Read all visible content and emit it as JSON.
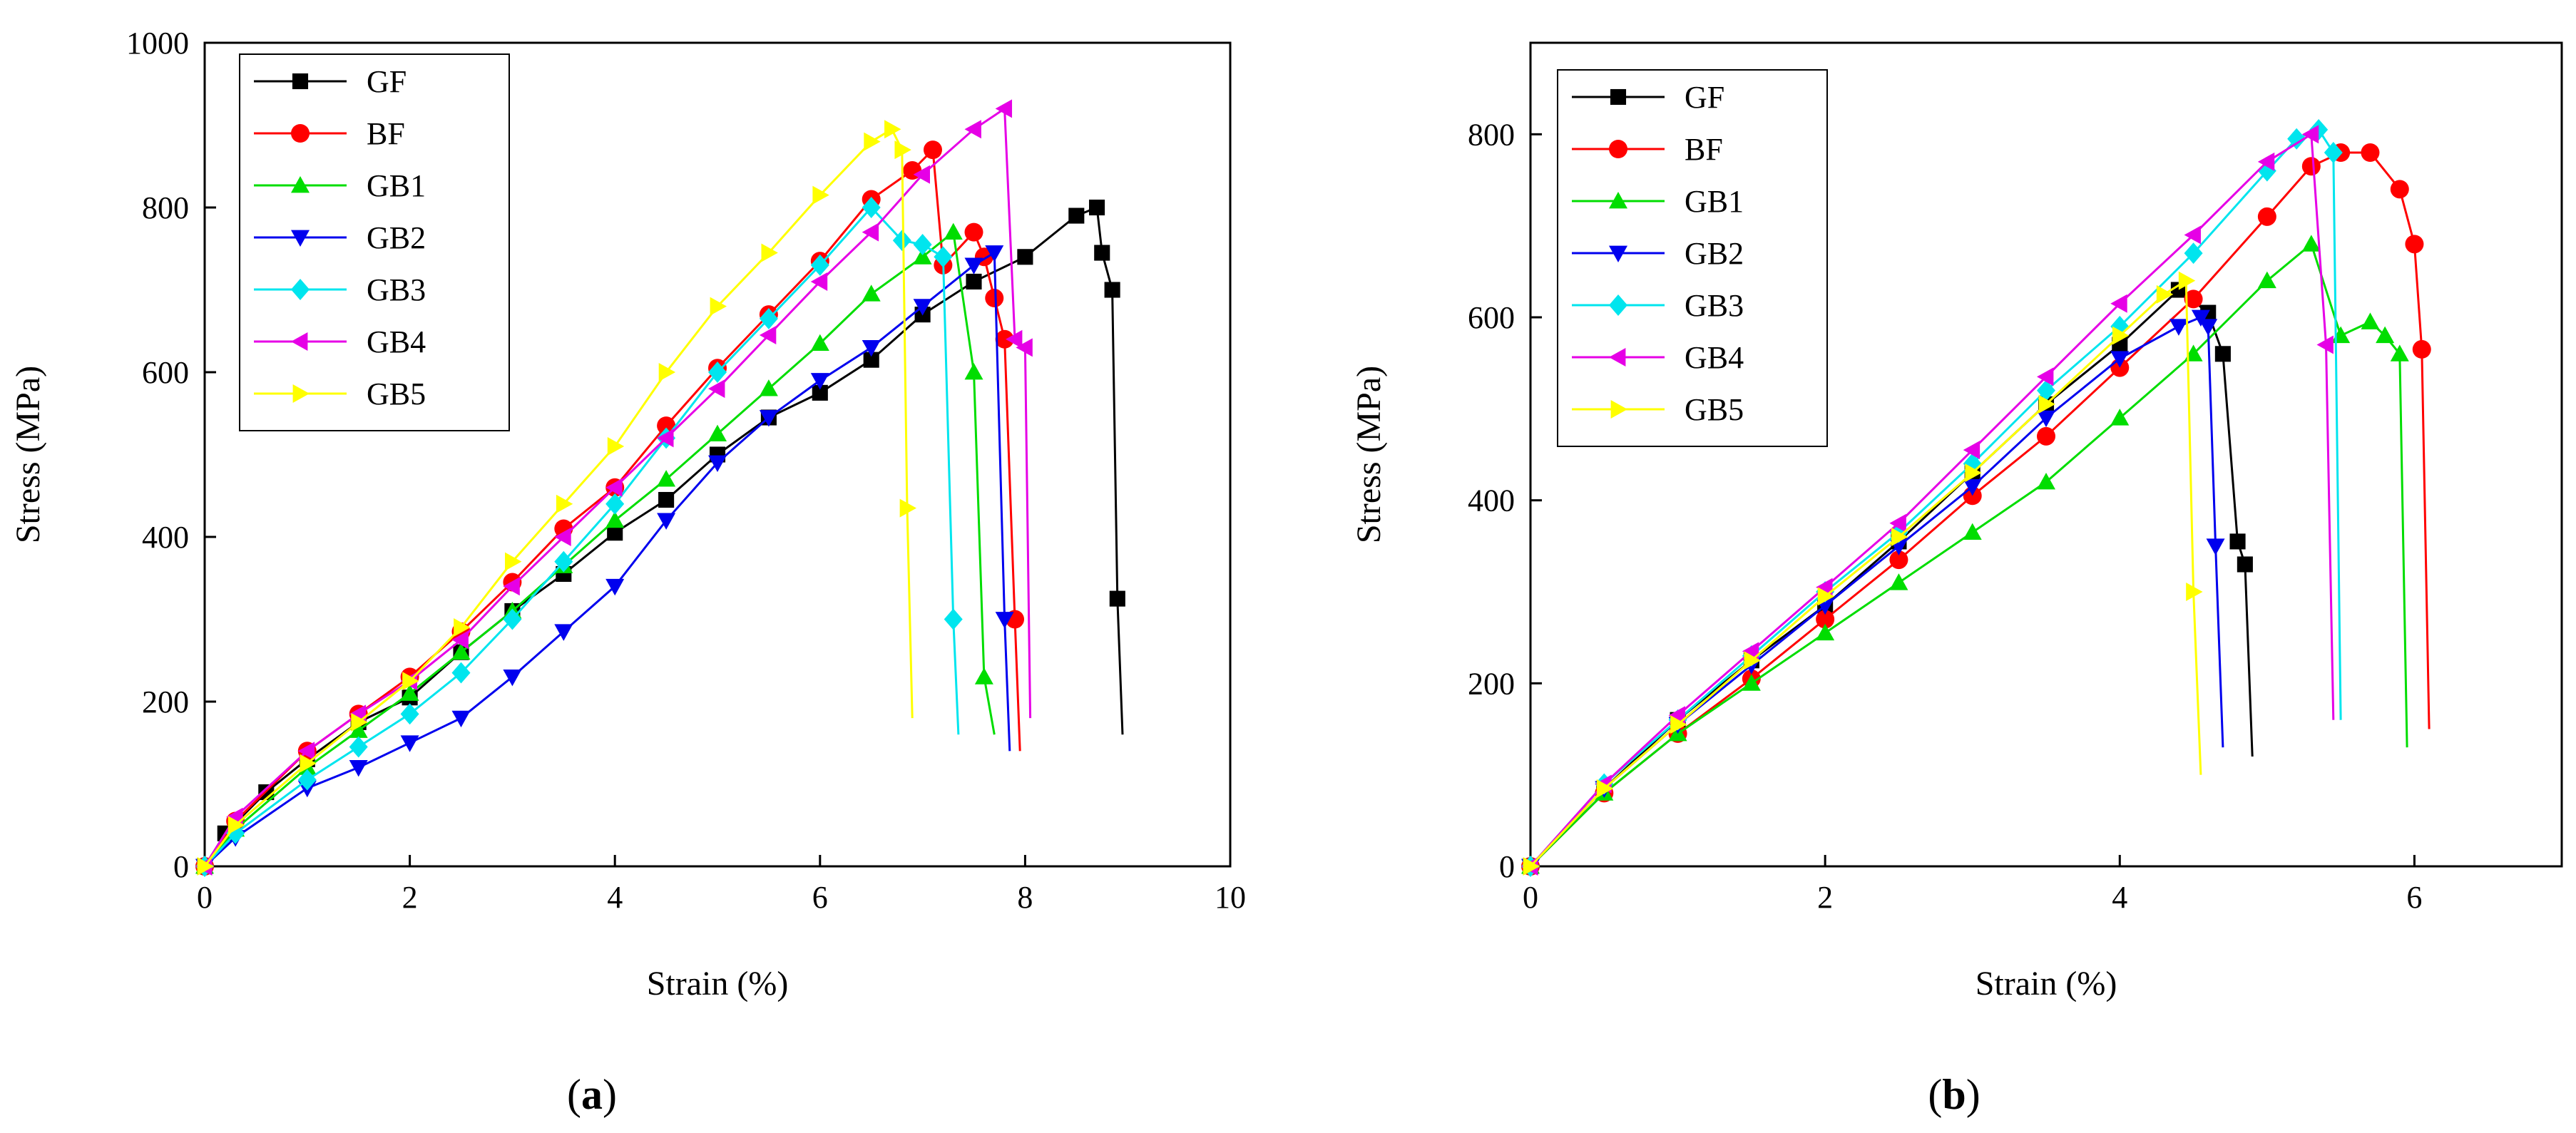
{
  "colors": {
    "GF": "#000000",
    "BF": "#ff0000",
    "GB1": "#00dd00",
    "GB2": "#0000ee",
    "GB3": "#00e5ee",
    "GB4": "#e600e6",
    "GB5": "#ffff00"
  },
  "chart_data": [
    {
      "type": "line",
      "panel_label": {
        "open": "(",
        "letter": "a",
        "close": ")"
      },
      "xlabel": "Strain (%)",
      "ylabel": "Stress (MPa)",
      "xlim": [
        0,
        10
      ],
      "ylim": [
        0,
        1000
      ],
      "xticks": [
        0,
        2,
        4,
        6,
        8,
        10
      ],
      "yticks": [
        0,
        200,
        400,
        600,
        800,
        1000
      ],
      "legend": {
        "placement": "top-left"
      },
      "series": [
        {
          "name": "GF",
          "marker": "square",
          "x": [
            0,
            0.2,
            0.6,
            1,
            1.5,
            2,
            2.5,
            3,
            3.5,
            4,
            4.5,
            5,
            5.5,
            6,
            6.5,
            7,
            7.5,
            8,
            8.5,
            8.7,
            8.75,
            8.85,
            8.9,
            8.95
          ],
          "y": [
            0,
            40,
            90,
            130,
            175,
            205,
            260,
            310,
            355,
            405,
            445,
            500,
            545,
            575,
            615,
            670,
            710,
            740,
            790,
            800,
            745,
            700,
            325,
            160
          ]
        },
        {
          "name": "BF",
          "marker": "circle",
          "x": [
            0,
            0.3,
            1,
            1.5,
            2,
            2.5,
            3,
            3.5,
            4,
            4.5,
            5,
            5.5,
            6,
            6.5,
            6.9,
            7.1,
            7.2,
            7.5,
            7.6,
            7.7,
            7.8,
            7.9,
            7.95
          ],
          "y": [
            0,
            55,
            140,
            185,
            230,
            285,
            345,
            410,
            460,
            535,
            605,
            670,
            735,
            810,
            845,
            870,
            730,
            770,
            740,
            690,
            640,
            300,
            140
          ]
        },
        {
          "name": "GB1",
          "marker": "triangle-up",
          "x": [
            0,
            0.3,
            1,
            1.5,
            2,
            2.5,
            3,
            3.5,
            4,
            4.5,
            5,
            5.5,
            6,
            6.5,
            7,
            7.3,
            7.5,
            7.6,
            7.7
          ],
          "y": [
            0,
            45,
            120,
            165,
            210,
            260,
            310,
            365,
            420,
            470,
            525,
            580,
            635,
            695,
            740,
            770,
            600,
            230,
            160
          ]
        },
        {
          "name": "GB2",
          "marker": "triangle-down",
          "x": [
            0,
            0.3,
            1,
            1.5,
            2,
            2.5,
            3,
            3.5,
            4,
            4.5,
            5,
            5.5,
            6,
            6.5,
            7,
            7.5,
            7.7,
            7.8,
            7.85
          ],
          "y": [
            0,
            35,
            95,
            120,
            150,
            180,
            230,
            285,
            340,
            420,
            490,
            545,
            590,
            630,
            680,
            730,
            745,
            300,
            140
          ]
        },
        {
          "name": "GB3",
          "marker": "diamond",
          "x": [
            0,
            0.3,
            1,
            1.5,
            2,
            2.5,
            3,
            3.5,
            4,
            4.5,
            5,
            5.5,
            6,
            6.5,
            6.8,
            7,
            7.2,
            7.3,
            7.35
          ],
          "y": [
            0,
            40,
            105,
            145,
            185,
            235,
            300,
            370,
            440,
            520,
            600,
            665,
            730,
            800,
            760,
            755,
            740,
            300,
            160
          ]
        },
        {
          "name": "GB4",
          "marker": "triangle-left",
          "x": [
            0,
            0.3,
            1,
            1.5,
            2,
            2.5,
            3,
            3.5,
            4,
            4.5,
            5,
            5.5,
            6,
            6.5,
            7,
            7.5,
            7.8,
            7.9,
            8.0,
            8.05
          ],
          "y": [
            0,
            60,
            140,
            185,
            225,
            275,
            340,
            400,
            460,
            520,
            580,
            645,
            710,
            770,
            840,
            895,
            920,
            640,
            630,
            180
          ]
        },
        {
          "name": "GB5",
          "marker": "triangle-right",
          "x": [
            0,
            0.3,
            1,
            1.5,
            2,
            2.5,
            3,
            3.5,
            4,
            4.5,
            5,
            5.5,
            6,
            6.5,
            6.7,
            6.8,
            6.85,
            6.9
          ],
          "y": [
            0,
            50,
            125,
            175,
            225,
            290,
            370,
            440,
            510,
            600,
            680,
            745,
            815,
            880,
            895,
            870,
            435,
            180
          ]
        }
      ]
    },
    {
      "type": "line",
      "panel_label": {
        "open": "(",
        "letter": "b",
        "close": ")"
      },
      "xlabel": "Strain (%)",
      "ylabel": "Stress (MPa)",
      "xlim": [
        0,
        7
      ],
      "ylim": [
        0,
        900
      ],
      "xticks": [
        0,
        2,
        4,
        6
      ],
      "yticks": [
        0,
        200,
        400,
        600,
        800
      ],
      "legend": {
        "placement": "top-left"
      },
      "series": [
        {
          "name": "GF",
          "marker": "square",
          "x": [
            0,
            0.5,
            1,
            1.5,
            2,
            2.5,
            3,
            3.5,
            4,
            4.4,
            4.6,
            4.7,
            4.8,
            4.85,
            4.9
          ],
          "y": [
            0,
            85,
            160,
            225,
            285,
            355,
            430,
            505,
            570,
            630,
            605,
            560,
            355,
            330,
            120
          ]
        },
        {
          "name": "BF",
          "marker": "circle",
          "x": [
            0,
            0.5,
            1,
            1.5,
            2,
            2.5,
            3,
            3.5,
            4,
            4.5,
            5,
            5.3,
            5.5,
            5.7,
            5.9,
            6.0,
            6.05,
            6.1
          ],
          "y": [
            0,
            80,
            145,
            205,
            270,
            335,
            405,
            470,
            545,
            620,
            710,
            765,
            780,
            780,
            740,
            680,
            565,
            150
          ]
        },
        {
          "name": "GB1",
          "marker": "triangle-up",
          "x": [
            0,
            0.5,
            1,
            1.5,
            2,
            2.5,
            3,
            3.5,
            4,
            4.5,
            5,
            5.3,
            5.5,
            5.7,
            5.8,
            5.9,
            5.95
          ],
          "y": [
            0,
            80,
            145,
            200,
            255,
            310,
            365,
            420,
            490,
            560,
            640,
            680,
            580,
            595,
            580,
            560,
            130
          ]
        },
        {
          "name": "GB2",
          "marker": "triangle-down",
          "x": [
            0,
            0.5,
            1,
            1.5,
            2,
            2.5,
            3,
            3.5,
            4,
            4.4,
            4.55,
            4.6,
            4.65,
            4.7
          ],
          "y": [
            0,
            85,
            155,
            220,
            285,
            350,
            415,
            490,
            555,
            590,
            600,
            590,
            350,
            130
          ]
        },
        {
          "name": "GB3",
          "marker": "diamond",
          "x": [
            0,
            0.5,
            1,
            1.5,
            2,
            2.5,
            3,
            3.5,
            4,
            4.5,
            5,
            5.2,
            5.35,
            5.45,
            5.5
          ],
          "y": [
            0,
            90,
            160,
            230,
            300,
            365,
            440,
            520,
            590,
            670,
            760,
            795,
            805,
            780,
            160
          ]
        },
        {
          "name": "GB4",
          "marker": "triangle-left",
          "x": [
            0,
            0.5,
            1,
            1.5,
            2,
            2.5,
            3,
            3.5,
            4,
            4.5,
            5,
            5.3,
            5.4,
            5.45
          ],
          "y": [
            0,
            90,
            165,
            235,
            305,
            375,
            455,
            535,
            615,
            690,
            770,
            800,
            570,
            160
          ]
        },
        {
          "name": "GB5",
          "marker": "triangle-right",
          "x": [
            0,
            0.5,
            1,
            1.5,
            2,
            2.5,
            3,
            3.5,
            4,
            4.3,
            4.45,
            4.5,
            4.55
          ],
          "y": [
            0,
            85,
            155,
            225,
            295,
            360,
            430,
            505,
            580,
            625,
            640,
            300,
            100
          ]
        }
      ]
    }
  ]
}
